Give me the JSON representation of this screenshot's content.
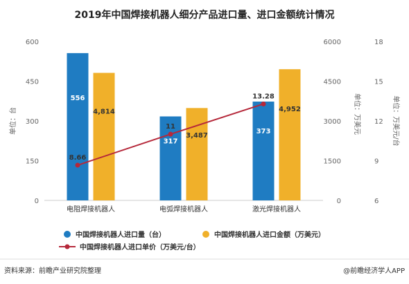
{
  "chart_data": {
    "type": "bar",
    "title": "2019年中国焊接机器人细分产品进口量、进口金额统计情况",
    "categories": [
      "电阻焊接机器人",
      "电弧焊接机器人",
      "激光焊接机器人"
    ],
    "series": [
      {
        "name": "中国焊接机器人进口量（台）",
        "type": "bar",
        "axis": "left",
        "color": "#1f7cc2",
        "values": [
          556,
          317,
          373
        ],
        "labels": [
          "556",
          "317",
          "373"
        ]
      },
      {
        "name": "中国焊接机器人进口金额（万美元）",
        "type": "bar",
        "axis": "right1",
        "color": "#f0b02a",
        "values": [
          4814,
          3487,
          4952
        ],
        "labels": [
          "4,814",
          "3,487",
          "4,952"
        ]
      },
      {
        "name": "中国焊接机器人进口单价（万美元/台）",
        "type": "line",
        "axis": "right2",
        "color": "#b5283a",
        "values": [
          8.66,
          11,
          13.28
        ],
        "labels": [
          "8.66",
          "11",
          "13.28"
        ]
      }
    ],
    "axes": {
      "left": {
        "label": "单位：台",
        "ylim": [
          0,
          600
        ],
        "ticks": [
          "0",
          "150",
          "300",
          "450",
          "600"
        ]
      },
      "right1": {
        "label": "单位：万美元",
        "ylim": [
          0,
          6000
        ],
        "ticks": [
          "0",
          "1500",
          "3000",
          "4500",
          "6000"
        ]
      },
      "right2": {
        "label": "单位：万美元/台",
        "ylim": [
          6,
          18
        ],
        "ticks": [
          "6",
          "9",
          "12",
          "15",
          "18"
        ]
      }
    },
    "grid": false,
    "legend_position": "bottom"
  },
  "footer": {
    "source": "资料来源：前瞻产业研究院整理",
    "credit": "@前瞻经济学人APP"
  }
}
